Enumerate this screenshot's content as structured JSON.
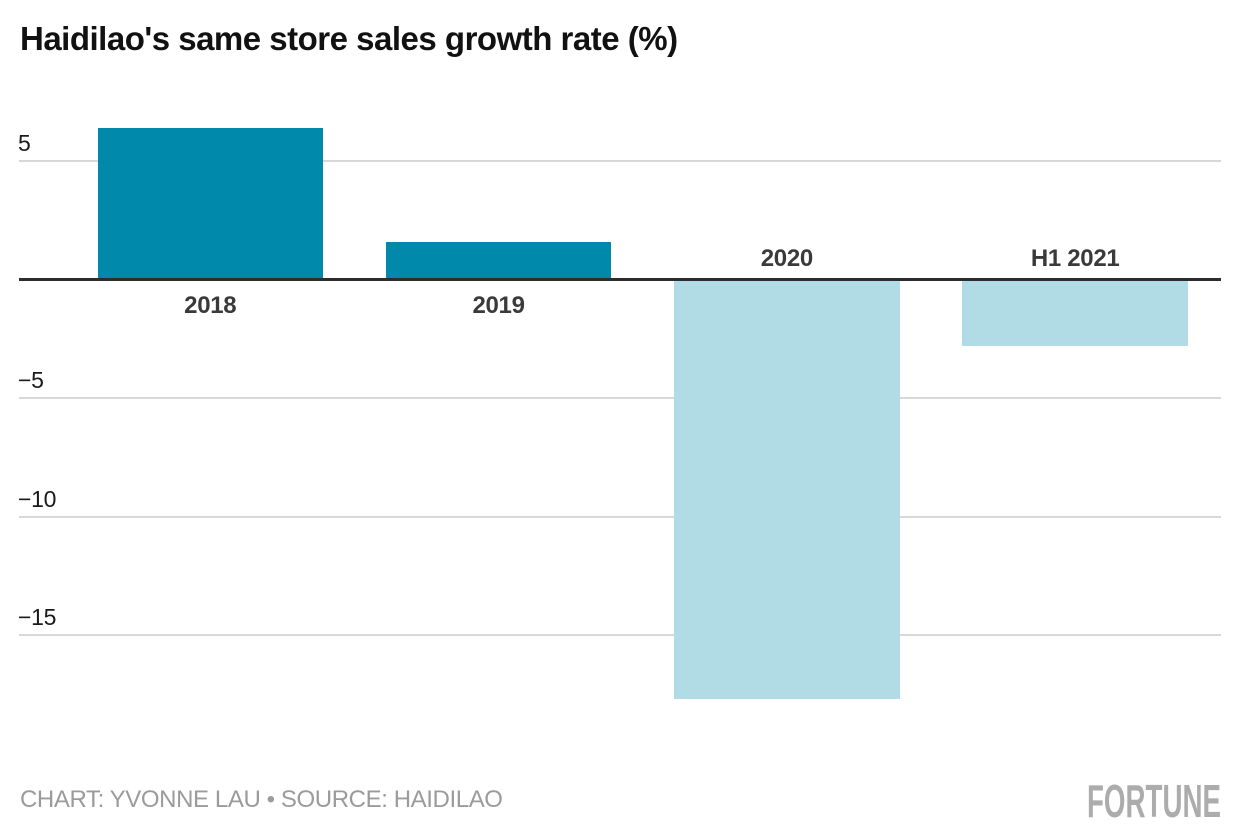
{
  "title": "Haidilao's same store sales growth rate (%)",
  "chart_data": {
    "type": "bar",
    "categories": [
      "2018",
      "2019",
      "2020",
      "H1 2021"
    ],
    "values": [
      6.4,
      1.6,
      -17.7,
      -2.8
    ],
    "title": "Haidilao's same store sales growth rate (%)",
    "xlabel": "",
    "ylabel": "",
    "yticks": [
      5,
      -5,
      -10,
      -15
    ],
    "ylim": [
      -18.2,
      6.7
    ],
    "grid": true,
    "legend": "none",
    "colors": {
      "bar_positive": "#0189AC",
      "bar_negative": "#B2DCE5",
      "gridline": "#D8D8D8",
      "zero_axis": "#2D2D2D",
      "tick_label": "#1A1A1A",
      "category_label": "#3A3A3A"
    }
  },
  "footer": {
    "credit": "CHART: YVONNE LAU • SOURCE: HAIDILAO",
    "brand": "FORTUNE"
  }
}
